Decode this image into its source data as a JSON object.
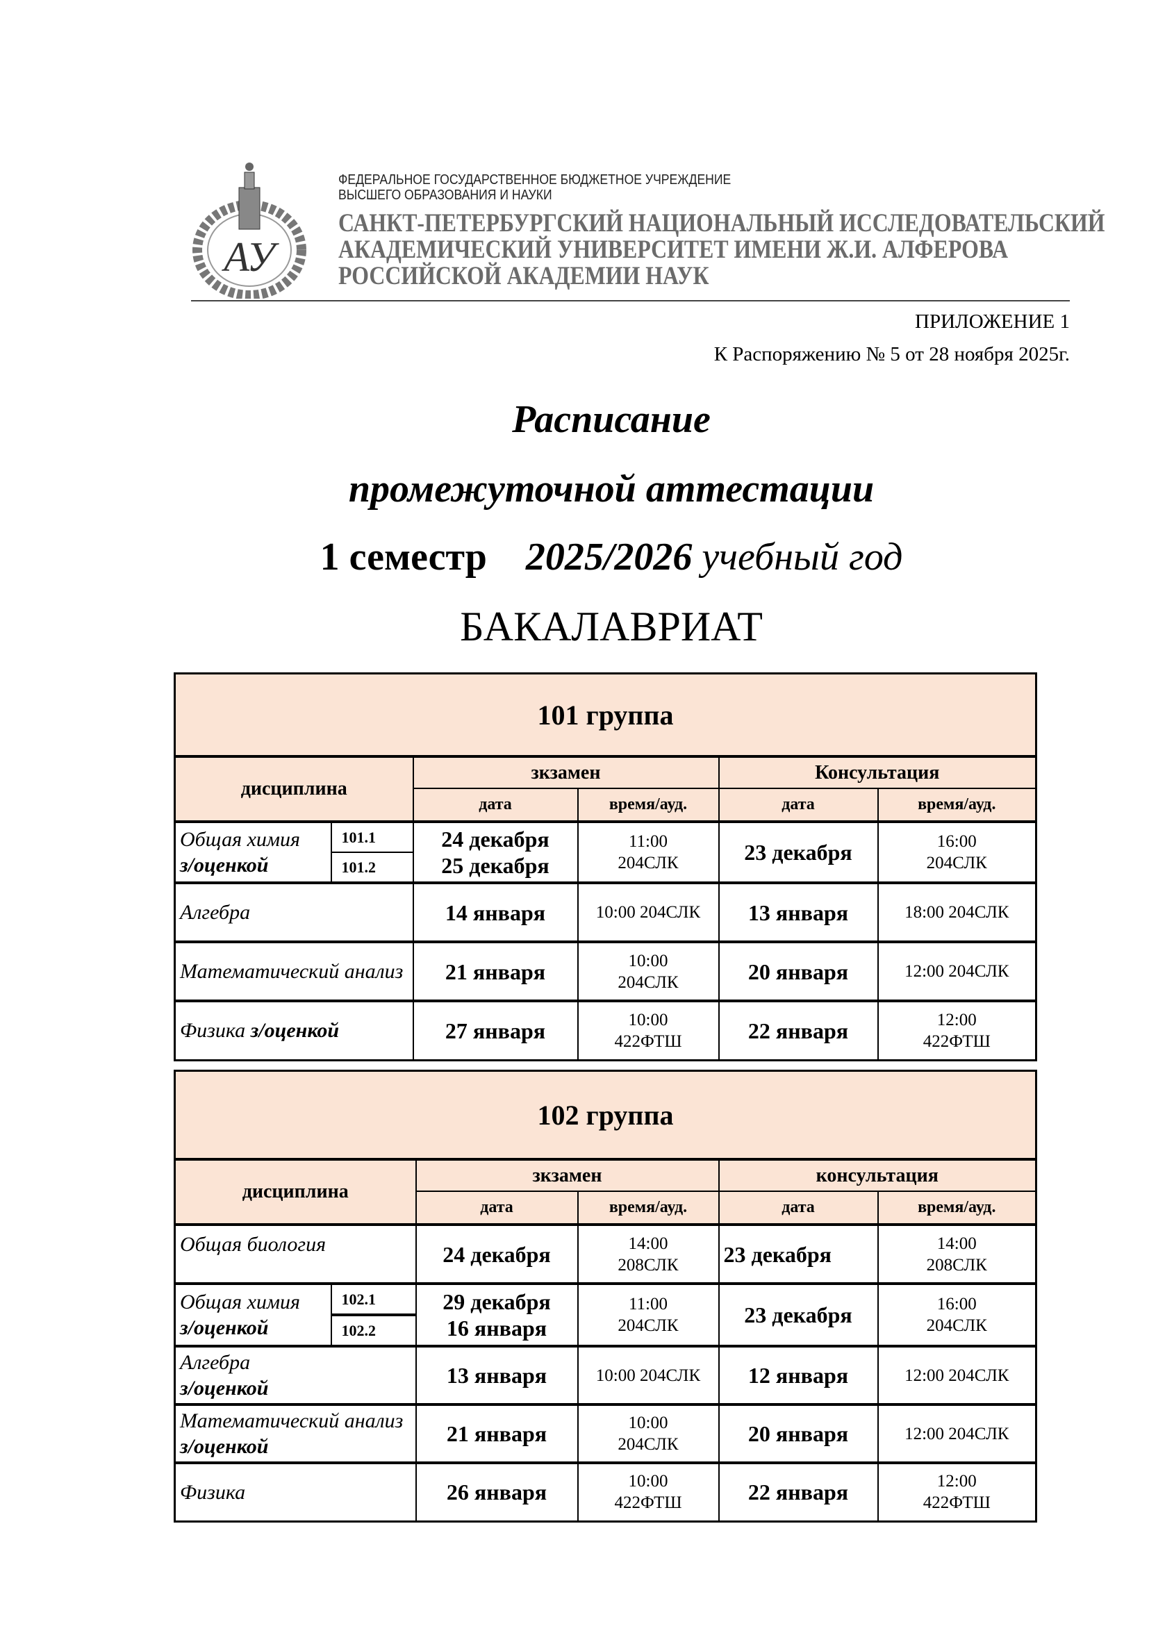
{
  "header": {
    "org_line1": "ФЕДЕРАЛЬНОЕ ГОСУДАРСТВЕННОЕ БЮДЖЕТНОЕ УЧРЕЖДЕНИЕ",
    "org_line2": "ВЫСШЕГО ОБРАЗОВАНИЯ И НАУКИ",
    "univ_line1": "САНКТ-ПЕТЕРБУРГСКИЙ НАЦИОНАЛЬНЫЙ ИССЛЕДОВАТЕЛЬСКИЙ",
    "univ_line2": "АКАДЕМИЧЕСКИЙ УНИВЕРСИТЕТ ИМЕНИ Ж.И. АЛФЕРОВА",
    "univ_line3": "РОССИЙСКОЙ АКАДЕМИИ НАУК",
    "logo_monogram": "АУ"
  },
  "appendix": {
    "label": "ПРИЛОЖЕНИЕ 1",
    "order": "К Распоряжению № 5 от 28 ноября 2025г."
  },
  "title": {
    "line1": "Расписание",
    "line2": "промежуточной аттестации",
    "semester": "1 семестр",
    "year": "2025/2026",
    "year_suffix": "учебный год",
    "level": "БАКАЛАВРИАТ"
  },
  "colors": {
    "header_bg": "#fbe4d5"
  },
  "groups": [
    {
      "title": "101 группа",
      "col_discipline": "дисциплина",
      "col_exam": "зкзамен",
      "col_consult": "Консультация",
      "col_date": "дата",
      "col_time": "время/ауд.",
      "rows": [
        {
          "discipline": "Общая химия",
          "discipline_bold": "з/оценкой",
          "sub1": "101.1",
          "sub2": "101.2",
          "exam_date": "24 декабря",
          "exam_date2": "25 декабря",
          "exam_time": "11:00",
          "exam_room": "204СЛК",
          "cons_date": "23 декабря",
          "cons_time": "16:00",
          "cons_room": "204СЛК"
        },
        {
          "discipline": "Алгебра",
          "exam_date": "14 января",
          "exam_time": "10:00 204СЛК",
          "cons_date": "13 января",
          "cons_time": "18:00 204СЛК"
        },
        {
          "discipline": "Математический анализ",
          "exam_date": "21 января",
          "exam_time": "10:00",
          "exam_room": "204СЛК",
          "cons_date": "20 января",
          "cons_time": "12:00  204СЛК"
        },
        {
          "discipline": "Физика",
          "discipline_bold": "з/оценкой",
          "exam_date": "27 января",
          "exam_time": "10:00",
          "exam_room": "422ФТШ",
          "cons_date": "22 января",
          "cons_time": "12:00",
          "cons_room": "422ФТШ"
        }
      ]
    },
    {
      "title": "102 группа",
      "col_discipline": "дисциплина",
      "col_exam": "зкзамен",
      "col_consult": "консультация",
      "col_date": "дата",
      "col_time": "время/ауд.",
      "rows": [
        {
          "discipline": "Общая биология",
          "exam_date": "24 декабря",
          "exam_time": "14:00",
          "exam_room": "208СЛК",
          "cons_date": "23 декабря",
          "cons_time": "14:00",
          "cons_room": "208СЛК"
        },
        {
          "discipline": "Общая химия",
          "discipline_bold": "з/оценкой",
          "sub1": "102.1",
          "sub2": "102.2",
          "exam_date": "29 декабря",
          "exam_date2": "16 января",
          "exam_time": "11:00",
          "exam_room": "204СЛК",
          "cons_date": "23 декабря",
          "cons_time": "16:00",
          "cons_room": "204СЛК"
        },
        {
          "discipline": "Алгебра",
          "discipline_bold": "з/оценкой",
          "exam_date": "13 января",
          "exam_time": "10:00 204СЛК",
          "cons_date": "12 января",
          "cons_time": "12:00 204СЛК"
        },
        {
          "discipline": "Математический анализ",
          "discipline_bold": "з/оценкой",
          "exam_date": "21 января",
          "exam_time": "10:00",
          "exam_room": "204СЛК",
          "cons_date": "20 января",
          "cons_time": "12:00 204СЛК"
        },
        {
          "discipline": "Физика",
          "exam_date": "26 января",
          "exam_time": "10:00",
          "exam_room": "422ФТШ",
          "cons_date": "22 января",
          "cons_time": "12:00",
          "cons_room": "422ФТШ"
        }
      ]
    }
  ]
}
